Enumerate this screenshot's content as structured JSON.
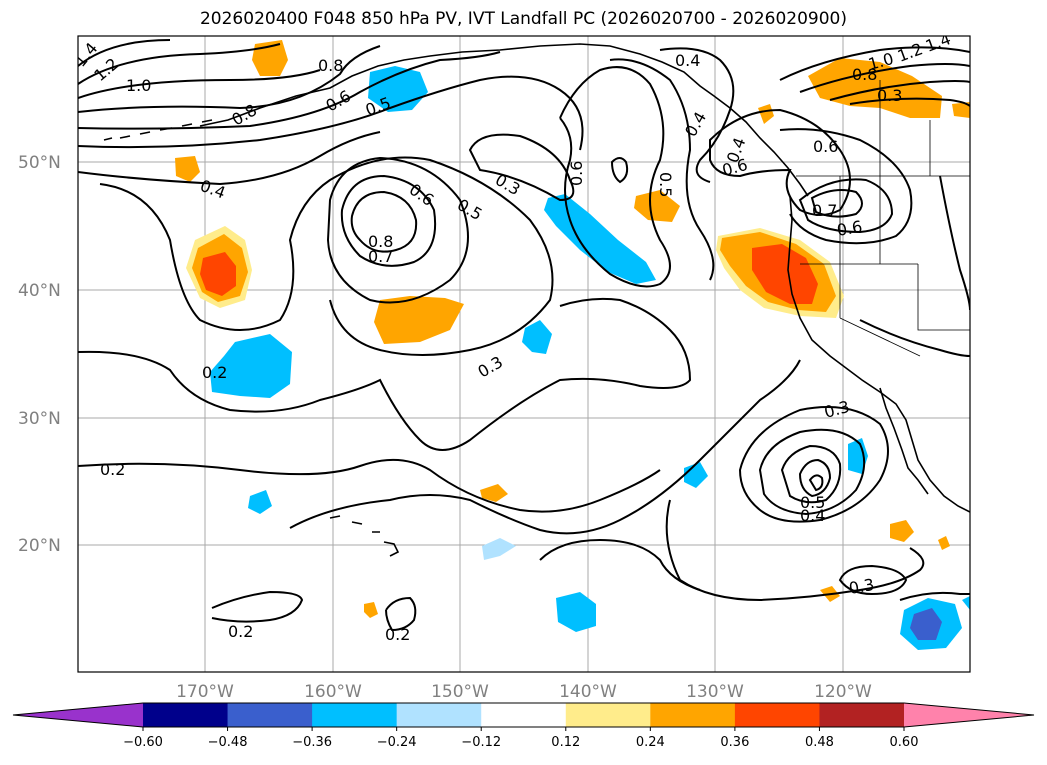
{
  "title": "2026020400 F048 850 hPa PV, IVT Landfall PC (2026020700 - 2026020900)",
  "lat_labels": [
    "50°N",
    "40°N",
    "30°N",
    "20°N"
  ],
  "lon_labels": [
    "170°W",
    "160°W",
    "150°W",
    "140°W",
    "130°W",
    "120°W"
  ],
  "contour_labels": [
    "1.4",
    "1.2",
    "1.0",
    "0.8",
    "0.8",
    "0.6",
    "0.5",
    "0.4",
    "0.4",
    "0.3",
    "0.6",
    "0.6",
    "0.5",
    "0.5",
    "0.8",
    "0.7",
    "0.6",
    "0.4",
    "0.4",
    "0.7",
    "0.6",
    "1.4",
    "1.2",
    "1.0",
    "0.8",
    "0.6",
    "0.3",
    "0.2",
    "0.2",
    "0.3",
    "0.3",
    "0.5",
    "0.4",
    "0.3",
    "0.2",
    "0.2"
  ],
  "colorbar": {
    "ticks": [
      "−0.60",
      "−0.48",
      "−0.36",
      "−0.24",
      "−0.12",
      "0.12",
      "0.24",
      "0.36",
      "0.48",
      "0.60"
    ],
    "colors": [
      "#9932cc",
      "#00008b",
      "#3a5fcd",
      "#00bfff",
      "#b0e2ff",
      "#ffffff",
      "#ffec8b",
      "#ffa500",
      "#ff4500",
      "#b22222",
      "#ff82ab"
    ]
  }
}
